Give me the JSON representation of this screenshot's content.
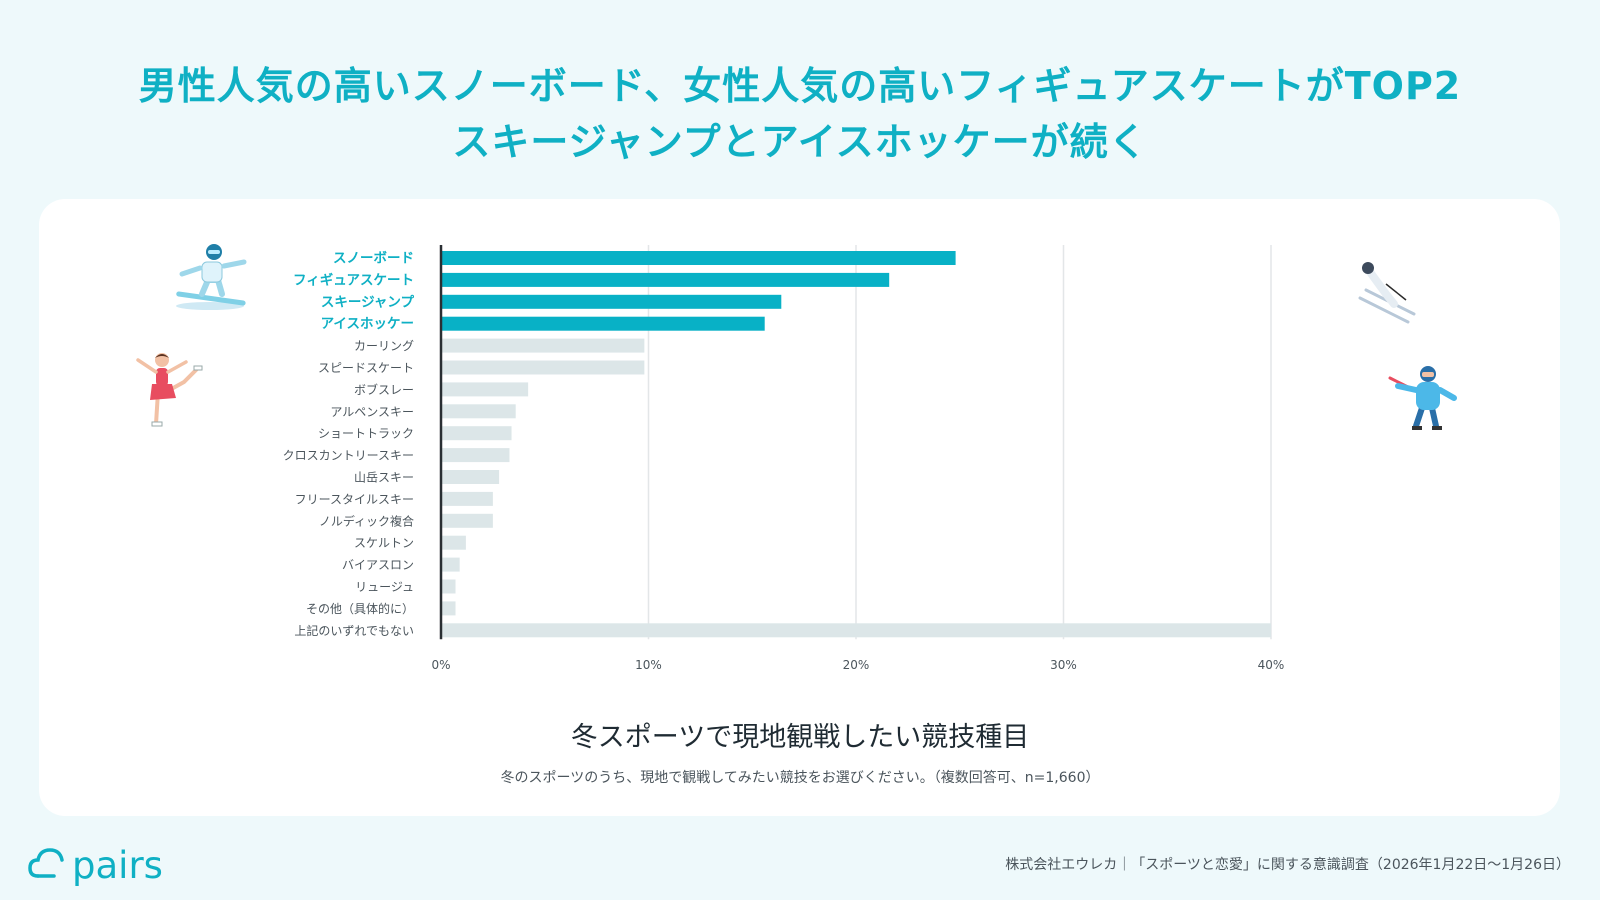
{
  "headline": {
    "line1": "男性人気の高いスノーボード、女性人気の高いフィギュアスケートがTOP2",
    "line2": "スキージャンプとアイスホッケーが続く"
  },
  "chart_data": {
    "type": "bar",
    "orientation": "horizontal",
    "title": "冬スポーツで現地観戦したい競技種目",
    "subtitle": "冬のスポーツのうち、現地で観戦してみたい競技をお選びください。（複数回答可、n=1,660）",
    "categories": [
      "スノーボード",
      "フィギュアスケート",
      "スキージャンプ",
      "アイスホッケー",
      "カーリング",
      "スピードスケート",
      "ボブスレー",
      "アルペンスキー",
      "ショートトラック",
      "クロスカントリースキー",
      "山岳スキー",
      "フリースタイルスキー",
      "ノルディック複合",
      "スケルトン",
      "バイアスロン",
      "リュージュ",
      "その他（具体的に）",
      "上記のいずれでもない"
    ],
    "values": [
      24.8,
      21.6,
      16.4,
      15.6,
      9.8,
      9.8,
      4.2,
      3.6,
      3.4,
      3.3,
      2.8,
      2.5,
      2.5,
      1.2,
      0.9,
      0.7,
      0.7,
      40.0
    ],
    "highlight_count": 4,
    "xlim": [
      0,
      40
    ],
    "xticks": [
      "0%",
      "10%",
      "20%",
      "30%",
      "40%"
    ],
    "grid": true,
    "colors": {
      "highlight": "#08b1c6",
      "other": "#dce6e8",
      "highlight_label": "#0fb0c4",
      "label": "#4b555c"
    }
  },
  "footer": {
    "logo": "pairs",
    "note": "株式会社エウレカ｜「スポーツと恋愛」に関する意識調査（2026年1月22日〜1月26日）"
  },
  "decorations": [
    "snowboarder-icon",
    "figure-skater-icon",
    "ski-jumper-icon",
    "hockey-player-icon"
  ]
}
